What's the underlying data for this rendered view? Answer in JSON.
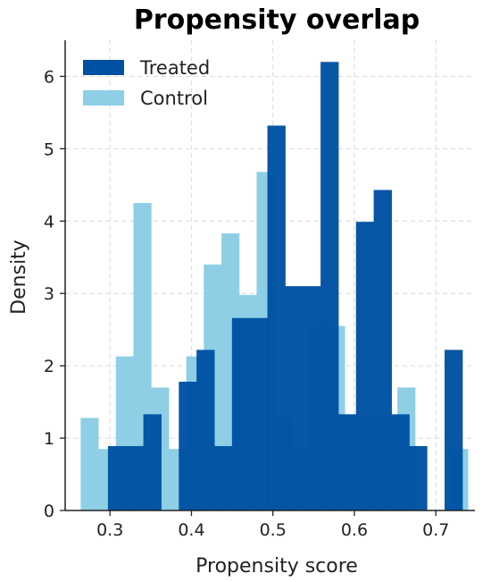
{
  "chart_data": {
    "type": "bar",
    "title": "Propensity overlap",
    "xlabel": "Propensity score",
    "ylabel": "Density",
    "xlim": [
      0.245,
      0.748
    ],
    "ylim": [
      0,
      6.5
    ],
    "xticks": [
      "0.3",
      "0.4",
      "0.5",
      "0.6",
      "0.7"
    ],
    "yticks": [
      "0",
      "1",
      "2",
      "3",
      "4",
      "5",
      "6"
    ],
    "grid": true,
    "legend_position": "top-left",
    "series": [
      {
        "name": "Control",
        "color": "#8ecfe6",
        "bin_width": 0.0216,
        "bins": [
          {
            "x0": 0.264,
            "value": 1.28
          },
          {
            "x0": 0.2856,
            "value": 0.85
          },
          {
            "x0": 0.3072,
            "value": 2.13
          },
          {
            "x0": 0.3288,
            "value": 4.25
          },
          {
            "x0": 0.3504,
            "value": 1.7
          },
          {
            "x0": 0.372,
            "value": 0.85
          },
          {
            "x0": 0.3936,
            "value": 2.13
          },
          {
            "x0": 0.4152,
            "value": 3.4
          },
          {
            "x0": 0.4368,
            "value": 3.83
          },
          {
            "x0": 0.4584,
            "value": 2.98
          },
          {
            "x0": 0.48,
            "value": 4.68
          },
          {
            "x0": 0.5016,
            "value": 1.28
          },
          {
            "x0": 0.5232,
            "value": 0.85
          },
          {
            "x0": 0.5448,
            "value": 2.55
          },
          {
            "x0": 0.5664,
            "value": 2.55
          },
          {
            "x0": 0.588,
            "value": 1.28
          },
          {
            "x0": 0.6096,
            "value": 1.28
          },
          {
            "x0": 0.6312,
            "value": 1.28
          },
          {
            "x0": 0.6528,
            "value": 1.7
          },
          {
            "x0": 0.6744,
            "value": 0.0
          },
          {
            "x0": 0.696,
            "value": 0.0
          },
          {
            "x0": 0.7176,
            "value": 0.85
          }
        ]
      },
      {
        "name": "Treated",
        "color": "#0051a3",
        "bin_width": 0.02175,
        "bins": [
          {
            "x0": 0.2975,
            "value": 0.89
          },
          {
            "x0": 0.31925,
            "value": 0.89
          },
          {
            "x0": 0.341,
            "value": 1.33
          },
          {
            "x0": 0.36275,
            "value": 0.0
          },
          {
            "x0": 0.3845,
            "value": 1.78
          },
          {
            "x0": 0.40625,
            "value": 2.22
          },
          {
            "x0": 0.428,
            "value": 0.89
          },
          {
            "x0": 0.44975,
            "value": 2.66
          },
          {
            "x0": 0.4715,
            "value": 2.66
          },
          {
            "x0": 0.49325,
            "value": 5.32
          },
          {
            "x0": 0.515,
            "value": 3.1
          },
          {
            "x0": 0.53675,
            "value": 3.1
          },
          {
            "x0": 0.5585,
            "value": 6.2
          },
          {
            "x0": 0.58025,
            "value": 1.33
          },
          {
            "x0": 0.602,
            "value": 3.99
          },
          {
            "x0": 0.62375,
            "value": 4.43
          },
          {
            "x0": 0.6455,
            "value": 1.33
          },
          {
            "x0": 0.66725,
            "value": 0.89
          },
          {
            "x0": 0.689,
            "value": 0.0
          },
          {
            "x0": 0.71075,
            "value": 2.22
          }
        ]
      }
    ],
    "legend": [
      {
        "label": "Treated",
        "color": "#0051a3"
      },
      {
        "label": "Control",
        "color": "#8ecfe6"
      }
    ]
  }
}
